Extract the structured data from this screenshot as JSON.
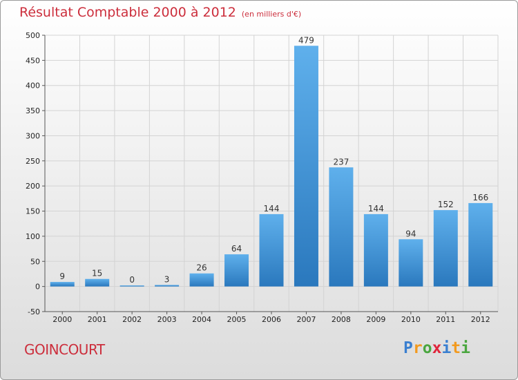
{
  "header": {
    "title": "Résultat Comptable 2000 à 2012",
    "subtitle": "(en milliers d'€)"
  },
  "footer": {
    "location": "GOINCOURT",
    "brand": {
      "letters": [
        "P",
        "r",
        "o",
        "x",
        "i",
        "t",
        "i"
      ],
      "colors": [
        "#3a7fd0",
        "#f29a1f",
        "#4aa63f",
        "#e0253b",
        "#3a7fd0",
        "#f29a1f",
        "#4aa63f"
      ]
    }
  },
  "chart_data": {
    "type": "bar",
    "title": "Résultat Comptable 2000 à 2012",
    "unit_label": "(en milliers d'€)",
    "categories": [
      "2000",
      "2001",
      "2002",
      "2003",
      "2004",
      "2005",
      "2006",
      "2007",
      "2008",
      "2009",
      "2010",
      "2011",
      "2012"
    ],
    "values": [
      9,
      15,
      0,
      3,
      26,
      64,
      144,
      479,
      237,
      144,
      94,
      152,
      166
    ],
    "ylim": [
      -50,
      500
    ],
    "yticks": [
      -50,
      0,
      50,
      100,
      150,
      200,
      250,
      300,
      350,
      400,
      450,
      500
    ],
    "xlabel": "",
    "ylabel": "",
    "grid": true,
    "colors": {
      "bar_dark": "#2a78bd",
      "bar_light": "#5fb0ec",
      "grid": "#d3d3d3",
      "axis": "#555555"
    }
  }
}
